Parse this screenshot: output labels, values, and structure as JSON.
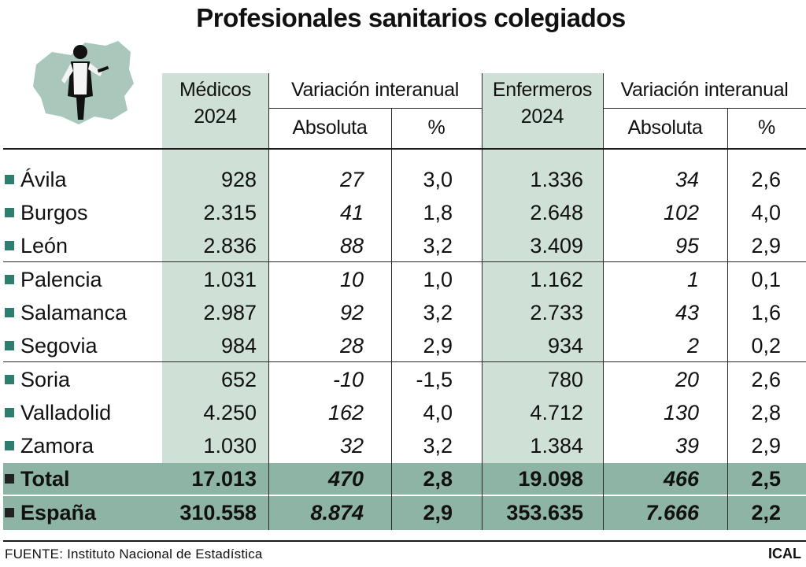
{
  "title": "Profesionales sanitarios colegiados",
  "source_label": "FUENTE:",
  "source_text": "Instituto Nacional de Estadística",
  "credit": "ICAL",
  "headers": {
    "medicos": [
      "Médicos",
      "2024"
    ],
    "variacion_med": "Variación interanual",
    "enfermeros": [
      "Enfermeros",
      "2024"
    ],
    "variacion_enf": "Variación interanual",
    "absoluta": "Absoluta",
    "pct": "%"
  },
  "colors": {
    "column_shade": "#cfe0d6",
    "total_band": "#8db4a4",
    "bullet": "#2e7d6f",
    "total_bullet": "#222222"
  },
  "chart_data": {
    "type": "table",
    "title": "Profesionales sanitarios colegiados",
    "columns": [
      "Médicos 2024",
      "Variación interanual Absoluta",
      "Variación interanual %",
      "Enfermeros 2024",
      "Variación interanual Absoluta",
      "Variación interanual %"
    ],
    "rows": [
      {
        "name": "Ávila",
        "medicos": "928",
        "med_abs": "27",
        "med_pct": "3,0",
        "enfermeros": "1.336",
        "enf_abs": "34",
        "enf_pct": "2,6"
      },
      {
        "name": "Burgos",
        "medicos": "2.315",
        "med_abs": "41",
        "med_pct": "1,8",
        "enfermeros": "2.648",
        "enf_abs": "102",
        "enf_pct": "4,0"
      },
      {
        "name": "León",
        "medicos": "2.836",
        "med_abs": "88",
        "med_pct": "3,2",
        "enfermeros": "3.409",
        "enf_abs": "95",
        "enf_pct": "2,9"
      },
      {
        "name": "Palencia",
        "medicos": "1.031",
        "med_abs": "10",
        "med_pct": "1,0",
        "enfermeros": "1.162",
        "enf_abs": "1",
        "enf_pct": "0,1"
      },
      {
        "name": "Salamanca",
        "medicos": "2.987",
        "med_abs": "92",
        "med_pct": "3,2",
        "enfermeros": "2.733",
        "enf_abs": "43",
        "enf_pct": "1,6"
      },
      {
        "name": "Segovia",
        "medicos": "984",
        "med_abs": "28",
        "med_pct": "2,9",
        "enfermeros": "934",
        "enf_abs": "2",
        "enf_pct": "0,2"
      },
      {
        "name": "Soria",
        "medicos": "652",
        "med_abs": "-10",
        "med_pct": "-1,5",
        "enfermeros": "780",
        "enf_abs": "20",
        "enf_pct": "2,6"
      },
      {
        "name": "Valladolid",
        "medicos": "4.250",
        "med_abs": "162",
        "med_pct": "4,0",
        "enfermeros": "4.712",
        "enf_abs": "130",
        "enf_pct": "2,8"
      },
      {
        "name": "Zamora",
        "medicos": "1.030",
        "med_abs": "32",
        "med_pct": "3,2",
        "enfermeros": "1.384",
        "enf_abs": "39",
        "enf_pct": "2,9"
      }
    ],
    "totals": [
      {
        "name": "Total",
        "medicos": "17.013",
        "med_abs": "470",
        "med_pct": "2,8",
        "enfermeros": "19.098",
        "enf_abs": "466",
        "enf_pct": "2,5"
      },
      {
        "name": "España",
        "medicos": "310.558",
        "med_abs": "8.874",
        "med_pct": "2,9",
        "enfermeros": "353.635",
        "enf_abs": "7.666",
        "enf_pct": "2,2"
      }
    ]
  }
}
